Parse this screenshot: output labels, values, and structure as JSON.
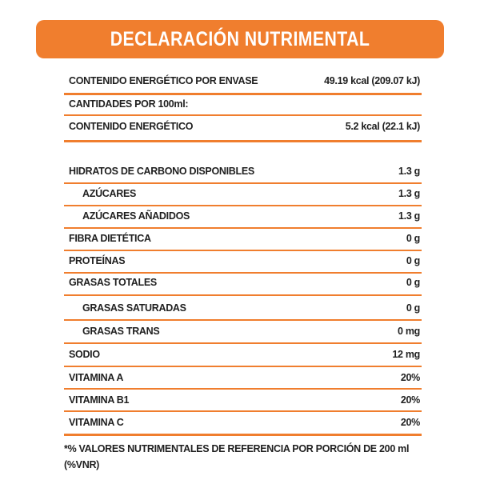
{
  "header": {
    "title": "DECLARACIÓN NUTRIMENTAL"
  },
  "rows": [
    {
      "label": "CONTENIDO ENERGÉTICO POR ENVASE",
      "value": "49.19 kcal (209.07 kJ)"
    },
    {
      "label": "CANTIDADES POR 100ml:"
    },
    {
      "label": "CONTENIDO ENERGÉTICO",
      "value": "5.2 kcal (22.1 kJ)"
    },
    {
      "label": "HIDRATOS DE CARBONO DISPONIBLES",
      "value": "1.3 g"
    },
    {
      "label": "AZÚCARES",
      "value": "1.3 g"
    },
    {
      "label": "AZÚCARES AÑADIDOS",
      "value": "1.3 g"
    },
    {
      "label": "FIBRA DIETÉTICA",
      "value": "0 g"
    },
    {
      "label": "PROTEÍNAS",
      "value": "0 g"
    },
    {
      "label": "GRASAS TOTALES",
      "value": "0 g"
    },
    {
      "label": "GRASAS SATURADAS",
      "value": "0 g"
    },
    {
      "label": "GRASAS TRANS",
      "value": "0 mg"
    },
    {
      "label": "SODIO",
      "value": "12 mg"
    },
    {
      "label": "VITAMINA A",
      "value": "20%"
    },
    {
      "label": "VITAMINA B1",
      "value": "20%"
    },
    {
      "label": "VITAMINA C",
      "value": "20%"
    }
  ],
  "footnote": "*% VALORES NUTRIMENTALES DE REFERENCIA POR PORCIÓN DE 200 ml (%VNR)"
}
